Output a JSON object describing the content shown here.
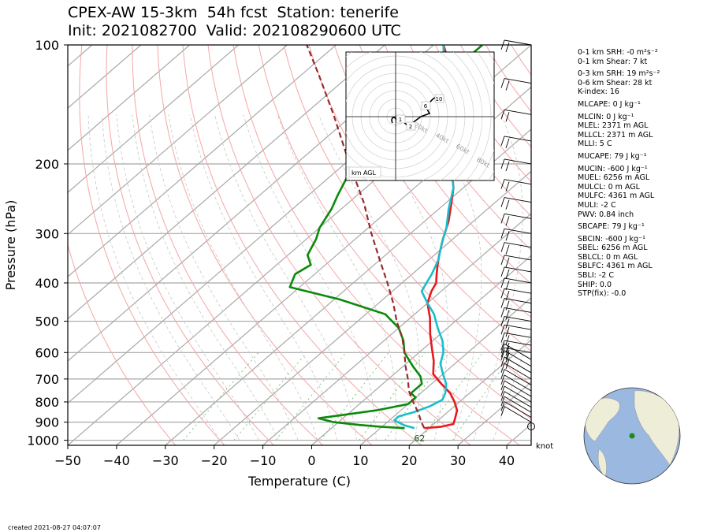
{
  "title_line1": "CPEX-AW 15-3km  54h fcst  Station: tenerife",
  "title_line2": "Init: 2021082700  Valid: 202108290600 UTC",
  "footer": "created 2021-08-27 04:07:07",
  "params": [
    "0-1 km SRH: -0 m²s⁻²",
    "0-1 km Shear: 7 kt",
    "0-3 km SRH: 19 m²s⁻²",
    "0-6 km Shear: 28 kt",
    "K-index: 16",
    "MLCAPE: 0 J kg⁻¹",
    "MLCIN: 0 J kg⁻¹",
    "MLEL: 2371 m AGL",
    "MLLCL: 2371 m AGL",
    "MLLI: 5 C",
    "MUCAPE: 79 J kg⁻¹",
    "MUCIN: -600 J kg⁻¹",
    "MUEL: 6256 m AGL",
    "MULCL: 0 m AGL",
    "MULFC: 4361 m AGL",
    "MULI: -2 C",
    "PWV: 0.84 inch",
    "SBCAPE: 79 J kg⁻¹",
    "SBCIN: -600 J kg⁻¹",
    "SBEL: 6256 m AGL",
    "SBLCL: 0 m AGL",
    "SBLFC: 4361 m AGL",
    "SBLI: -2 C",
    "SHIP: 0.0",
    "STP(fix): -0.0"
  ],
  "chart_data": {
    "type": "skew-t log-p",
    "ylabel": "Pressure (hPa)",
    "xlabel": "Temperature (C)",
    "y_scale": "log",
    "xlim": [
      -50,
      45
    ],
    "ylim": [
      1030,
      100
    ],
    "x_ticks": [
      -50,
      -40,
      -30,
      -20,
      -10,
      0,
      10,
      20,
      30,
      40
    ],
    "y_ticks": [
      100,
      200,
      300,
      400,
      500,
      600,
      700,
      800,
      900,
      1000
    ],
    "surface_label": "62",
    "wind_unit": "knot",
    "series": [
      {
        "key": "temperature",
        "color": "#e8191c",
        "points": [
          [
            932,
            19
          ],
          [
            925,
            22
          ],
          [
            910,
            24
          ],
          [
            880,
            23
          ],
          [
            840,
            21.5
          ],
          [
            800,
            19
          ],
          [
            760,
            16
          ],
          [
            720,
            12
          ],
          [
            680,
            8
          ],
          [
            630,
            5
          ],
          [
            590,
            2
          ],
          [
            540,
            -2
          ],
          [
            490,
            -6
          ],
          [
            450,
            -10
          ],
          [
            420,
            -12
          ],
          [
            400,
            -13
          ],
          [
            390,
            -14
          ],
          [
            375,
            -15.5
          ],
          [
            360,
            -17
          ],
          [
            340,
            -19
          ],
          [
            310,
            -22
          ],
          [
            280,
            -25
          ],
          [
            250,
            -29
          ],
          [
            230,
            -32
          ],
          [
            210,
            -36
          ],
          [
            190,
            -40
          ],
          [
            170,
            -44.5
          ],
          [
            150,
            -49
          ],
          [
            135,
            -53
          ],
          [
            125,
            -57
          ],
          [
            115,
            -60
          ],
          [
            110,
            -63
          ],
          [
            100,
            -68
          ]
        ]
      },
      {
        "key": "dewpoint",
        "color": "#17becf",
        "points": [
          [
            932,
            17
          ],
          [
            915,
            14
          ],
          [
            890,
            11
          ],
          [
            870,
            11
          ],
          [
            850,
            13
          ],
          [
            820,
            15
          ],
          [
            790,
            16
          ],
          [
            760,
            15
          ],
          [
            720,
            13
          ],
          [
            680,
            10
          ],
          [
            640,
            7
          ],
          [
            600,
            5
          ],
          [
            560,
            2
          ],
          [
            520,
            -2
          ],
          [
            480,
            -6
          ],
          [
            450,
            -10
          ],
          [
            420,
            -14
          ],
          [
            400,
            -15
          ],
          [
            380,
            -16
          ],
          [
            350,
            -18
          ],
          [
            320,
            -21
          ],
          [
            290,
            -24
          ],
          [
            260,
            -28
          ],
          [
            230,
            -32
          ],
          [
            210,
            -36
          ],
          [
            190,
            -40
          ],
          [
            170,
            -44.5
          ],
          [
            150,
            -49
          ],
          [
            135,
            -53
          ],
          [
            125,
            -58
          ],
          [
            115,
            -61
          ],
          [
            110,
            -64
          ],
          [
            100,
            -68
          ]
        ]
      },
      {
        "key": "wet_bulb",
        "color": "#0a8a0a",
        "points": [
          [
            932,
            15
          ],
          [
            925,
            10
          ],
          [
            915,
            5
          ],
          [
            900,
            -1
          ],
          [
            880,
            -5
          ],
          [
            860,
            0
          ],
          [
            840,
            5
          ],
          [
            810,
            10
          ],
          [
            780,
            10
          ],
          [
            760,
            8
          ],
          [
            720,
            8
          ],
          [
            690,
            6
          ],
          [
            650,
            2
          ],
          [
            600,
            -3
          ],
          [
            560,
            -6
          ],
          [
            520,
            -10
          ],
          [
            480,
            -16
          ],
          [
            440,
            -29
          ],
          [
            410,
            -42
          ],
          [
            380,
            -44
          ],
          [
            360,
            -43
          ],
          [
            340,
            -46
          ],
          [
            310,
            -48
          ],
          [
            290,
            -50
          ],
          [
            260,
            -52
          ],
          [
            240,
            -54
          ],
          [
            210,
            -57
          ],
          [
            190,
            -60
          ],
          [
            170,
            -63
          ],
          [
            160,
            -64
          ],
          [
            140,
            -63
          ],
          [
            125,
            -62
          ],
          [
            115,
            -61
          ],
          [
            105,
            -60
          ],
          [
            100,
            -60
          ]
        ]
      },
      {
        "key": "parcel_path",
        "color": "#9a2a2a",
        "points": [
          [
            932,
            19
          ],
          [
            900,
            17
          ],
          [
            850,
            14
          ],
          [
            800,
            10.5
          ],
          [
            750,
            7
          ],
          [
            700,
            4
          ],
          [
            650,
            0.5
          ],
          [
            600,
            -3
          ],
          [
            550,
            -7
          ],
          [
            500,
            -12
          ],
          [
            450,
            -17
          ],
          [
            400,
            -23
          ],
          [
            350,
            -30
          ],
          [
            300,
            -38
          ],
          [
            250,
            -47
          ],
          [
            200,
            -59
          ],
          [
            150,
            -74
          ],
          [
            120,
            -86
          ],
          [
            100,
            -96
          ]
        ]
      }
    ],
    "wind_barbs_ref": "wind barbs along right axis, 932–100 hPa",
    "hodograph": {
      "label": "km AGL",
      "ring_labels": [
        "20kt",
        "40kt",
        "60kt",
        "80kt"
      ],
      "height_labels": [
        "1",
        "2",
        "6",
        "10"
      ]
    }
  }
}
